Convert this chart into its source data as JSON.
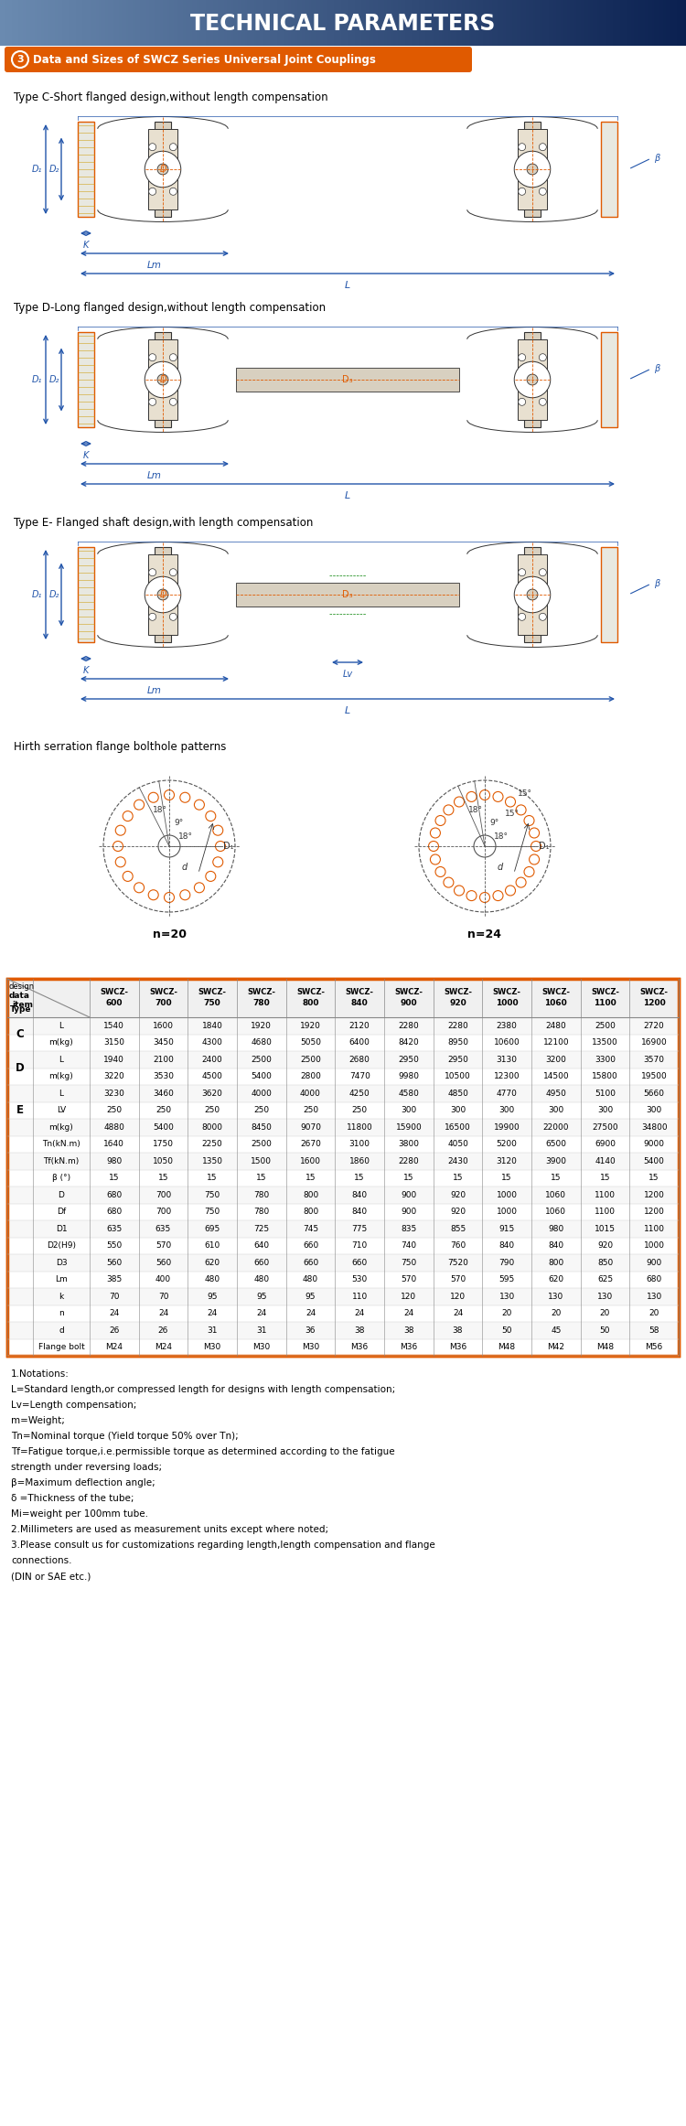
{
  "title": "TECHNICAL PARAMETERS",
  "section_title": "Data and Sizes of SWCZ Series Universal Joint Couplings",
  "type_c_label": "Type C-Short flanged design,without length compensation",
  "type_d_label": "Type D-Long flanged design,without length compensation",
  "type_e_label": "Type E- Flanged shaft design,with length compensation",
  "hirth_label": "Hirth serration flange bolthole patterns",
  "table_data": {
    "C_L": [
      1540,
      1600,
      1840,
      1920,
      1920,
      2120,
      2280,
      2280,
      2380,
      2480,
      2500,
      2720
    ],
    "C_m": [
      3150,
      3450,
      4300,
      4680,
      5050,
      6400,
      8420,
      8950,
      10600,
      12100,
      13500,
      16900
    ],
    "D_L": [
      1940,
      2100,
      2400,
      2500,
      2500,
      2680,
      2950,
      2950,
      3130,
      3200,
      3300,
      3570
    ],
    "D_m": [
      3220,
      3530,
      4500,
      5400,
      2800,
      7470,
      9980,
      10500,
      12300,
      14500,
      15800,
      19500
    ],
    "E_L": [
      3230,
      3460,
      3620,
      4000,
      4000,
      4250,
      4580,
      4850,
      4770,
      4950,
      5100,
      5660
    ],
    "E_LV": [
      250,
      250,
      250,
      250,
      250,
      250,
      300,
      300,
      300,
      300,
      300,
      300
    ],
    "E_m": [
      4880,
      5400,
      8000,
      8450,
      9070,
      11800,
      15900,
      16500,
      19900,
      22000,
      27500,
      34800
    ],
    "Tn": [
      1640,
      1750,
      2250,
      2500,
      2670,
      3100,
      3800,
      4050,
      5200,
      6500,
      6900,
      9000
    ],
    "Tf": [
      980,
      1050,
      1350,
      1500,
      1600,
      1860,
      2280,
      2430,
      3120,
      3900,
      4140,
      5400
    ],
    "beta": [
      15,
      15,
      15,
      15,
      15,
      15,
      15,
      15,
      15,
      15,
      15,
      15
    ],
    "D": [
      680,
      700,
      750,
      780,
      800,
      840,
      900,
      920,
      1000,
      1060,
      1100,
      1200
    ],
    "Df": [
      680,
      700,
      750,
      780,
      800,
      840,
      900,
      920,
      1000,
      1060,
      1100,
      1200
    ],
    "D1": [
      635,
      635,
      695,
      725,
      745,
      775,
      835,
      855,
      915,
      980,
      1015,
      1100
    ],
    "D2H9": [
      550,
      570,
      610,
      640,
      660,
      710,
      740,
      760,
      840,
      840,
      920,
      1000
    ],
    "D3": [
      560,
      560,
      620,
      660,
      660,
      660,
      750,
      7520,
      790,
      800,
      850,
      900
    ],
    "Lm": [
      385,
      400,
      480,
      480,
      480,
      530,
      570,
      570,
      595,
      620,
      625,
      680
    ],
    "k": [
      70,
      70,
      95,
      95,
      95,
      110,
      120,
      120,
      130,
      130,
      130,
      130
    ],
    "n": [
      24,
      24,
      24,
      24,
      24,
      24,
      24,
      24,
      20,
      20,
      20,
      20
    ],
    "d": [
      26,
      26,
      31,
      31,
      36,
      38,
      38,
      38,
      50,
      45,
      50,
      58
    ],
    "flange": [
      "M24",
      "M24",
      "M30",
      "M30",
      "M30",
      "M36",
      "M36",
      "M36",
      "M48",
      "M42",
      "M48",
      "M56"
    ]
  },
  "notes": [
    "1.Notations:",
    "L=Standard length,or compressed length for designs with length compensation;",
    "Lv=Length compensation;",
    "m=Weight;",
    "Tn=Nominal torque (Yield torque 50% over Tn);",
    "Tf=Fatigue torque,i.e.permissible torque as determined according to the fatigue",
    "strength under reversing loads;",
    "β=Maximum deflection angle;",
    "δ =Thickness of the tube;",
    "Mi=weight per 100mm tube.",
    "2.Millimeters are used as measurement units except where noted;",
    "3.Please consult us for customizations regarding length,length compensation and flange",
    "connections.",
    "(DIN or SAE etc.)"
  ],
  "orange_color": "#e05a00",
  "blue_arrow": "#2255aa",
  "dim_orange": "#e05a00",
  "line_dark": "#333333",
  "steel_fill": "#d8d0c0",
  "steel_light": "#e8e0d0"
}
